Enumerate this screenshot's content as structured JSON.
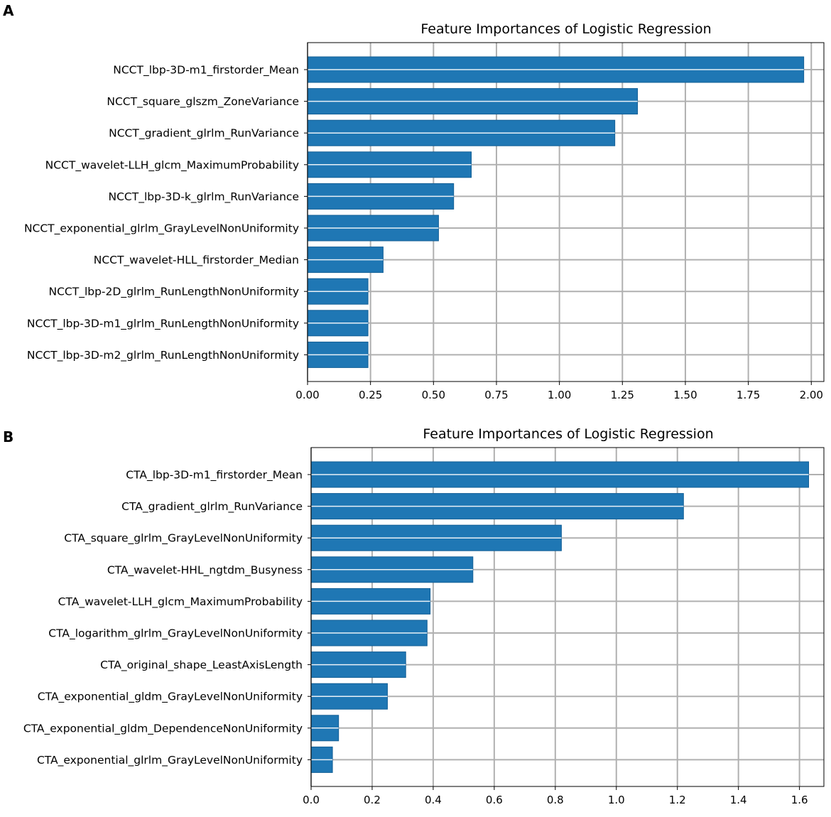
{
  "chart_data": [
    {
      "panel": "A",
      "type": "bar",
      "orientation": "horizontal",
      "title": "Feature Importances of Logistic Regression",
      "xlabel": "",
      "ylabel": "",
      "xlim": [
        0,
        2.05
      ],
      "xticks": [
        0.0,
        0.25,
        0.5,
        0.75,
        1.0,
        1.25,
        1.5,
        1.75,
        2.0
      ],
      "xtick_labels": [
        "0.00",
        "0.25",
        "0.50",
        "0.75",
        "1.00",
        "1.25",
        "1.50",
        "1.75",
        "2.00"
      ],
      "grid": true,
      "categories": [
        "NCCT_lbp-3D-m1_firstorder_Mean",
        "NCCT_square_glszm_ZoneVariance",
        "NCCT_gradient_glrlm_RunVariance",
        "NCCT_wavelet-LLH_glcm_MaximumProbability",
        "NCCT_lbp-3D-k_glrlm_RunVariance",
        "NCCT_exponential_glrlm_GrayLevelNonUniformity",
        "NCCT_wavelet-HLL_firstorder_Median",
        "NCCT_lbp-2D_glrlm_RunLengthNonUniformity",
        "NCCT_lbp-3D-m1_glrlm_RunLengthNonUniformity",
        "NCCT_lbp-3D-m2_glrlm_RunLengthNonUniformity"
      ],
      "values": [
        1.97,
        1.31,
        1.22,
        0.65,
        0.58,
        0.52,
        0.3,
        0.24,
        0.24,
        0.24
      ]
    },
    {
      "panel": "B",
      "type": "bar",
      "orientation": "horizontal",
      "title": "Feature Importances of Logistic Regression",
      "xlabel": "",
      "ylabel": "",
      "xlim": [
        0,
        1.68
      ],
      "xticks": [
        0.0,
        0.2,
        0.4,
        0.6,
        0.8,
        1.0,
        1.2,
        1.4,
        1.6
      ],
      "xtick_labels": [
        "0.0",
        "0.2",
        "0.4",
        "0.6",
        "0.8",
        "1.0",
        "1.2",
        "1.4",
        "1.6"
      ],
      "grid": true,
      "categories": [
        "CTA_lbp-3D-m1_firstorder_Mean",
        "CTA_gradient_glrlm_RunVariance",
        "CTA_square_glrlm_GrayLevelNonUniformity",
        "CTA_wavelet-HHL_ngtdm_Busyness",
        "CTA_wavelet-LLH_glcm_MaximumProbability",
        "CTA_logarithm_glrlm_GrayLevelNonUniformity",
        "CTA_original_shape_LeastAxisLength",
        "CTA_exponential_gldm_GrayLevelNonUniformity",
        "CTA_exponential_gldm_DependenceNonUniformity",
        "CTA_exponential_glrlm_GrayLevelNonUniformity"
      ],
      "values": [
        1.63,
        1.22,
        0.82,
        0.53,
        0.39,
        0.38,
        0.31,
        0.25,
        0.09,
        0.07
      ]
    }
  ]
}
